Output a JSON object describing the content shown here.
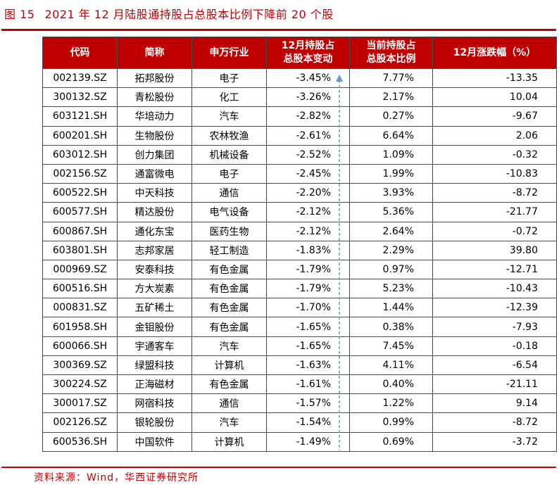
{
  "figure": {
    "label": "图 15",
    "title": "2021 年 12 月陆股通持股占总股本比例下降前 20 个股"
  },
  "table": {
    "headers": [
      "代码",
      "简称",
      "申万行业",
      "12月持股占\n总股本变动",
      "当前持股占\n总股本比例",
      "12月涨跌幅（%）"
    ],
    "rows": [
      [
        "002139.SZ",
        "拓邦股份",
        "电子",
        "-3.45%",
        "7.77%",
        "-13.35"
      ],
      [
        "300132.SZ",
        "青松股份",
        "化工",
        "-3.26%",
        "2.17%",
        "10.04"
      ],
      [
        "603121.SH",
        "华培动力",
        "汽车",
        "-2.82%",
        "0.27%",
        "-9.67"
      ],
      [
        "600201.SH",
        "生物股份",
        "农林牧渔",
        "-2.61%",
        "6.64%",
        "2.06"
      ],
      [
        "603012.SH",
        "创力集团",
        "机械设备",
        "-2.52%",
        "1.09%",
        "-0.32"
      ],
      [
        "002156.SZ",
        "通富微电",
        "电子",
        "-2.45%",
        "1.99%",
        "-10.83"
      ],
      [
        "600522.SH",
        "中天科技",
        "通信",
        "-2.20%",
        "3.93%",
        "-8.72"
      ],
      [
        "600577.SH",
        "精达股份",
        "电气设备",
        "-2.12%",
        "5.36%",
        "-21.77"
      ],
      [
        "600867.SH",
        "通化东宝",
        "医药生物",
        "-2.12%",
        "2.64%",
        "-0.72"
      ],
      [
        "603801.SH",
        "志邦家居",
        "轻工制造",
        "-1.83%",
        "2.29%",
        "39.80"
      ],
      [
        "000969.SZ",
        "安泰科技",
        "有色金属",
        "-1.79%",
        "0.97%",
        "-12.71"
      ],
      [
        "600516.SH",
        "方大炭素",
        "有色金属",
        "-1.79%",
        "5.23%",
        "-10.43"
      ],
      [
        "000831.SZ",
        "五矿稀土",
        "有色金属",
        "-1.70%",
        "1.44%",
        "-12.39"
      ],
      [
        "601958.SH",
        "金钼股份",
        "有色金属",
        "-1.65%",
        "0.38%",
        "-7.93"
      ],
      [
        "600066.SH",
        "宇通客车",
        "汽车",
        "-1.65%",
        "7.45%",
        "-0.18"
      ],
      [
        "300369.SZ",
        "绿盟科技",
        "计算机",
        "-1.63%",
        "4.11%",
        "-6.54"
      ],
      [
        "300224.SZ",
        "正海磁材",
        "有色金属",
        "-1.61%",
        "0.40%",
        "-21.11"
      ],
      [
        "300017.SZ",
        "网宿科技",
        "通信",
        "-1.57%",
        "1.22%",
        "9.14"
      ],
      [
        "002126.SZ",
        "银轮股份",
        "汽车",
        "-1.54%",
        "0.99%",
        "-8.72"
      ],
      [
        "600536.SH",
        "中国软件",
        "计算机",
        "-1.49%",
        "0.69%",
        "-3.72"
      ]
    ]
  },
  "source": "资料来源：Wind，华西证券研究所",
  "colors": {
    "accent": "#c00000",
    "arrow": "#5b9bd5"
  }
}
